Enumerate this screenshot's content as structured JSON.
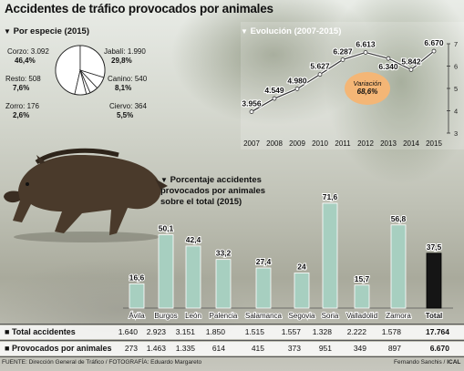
{
  "title": "Accidentes de tráfico provocados por animales",
  "pie": {
    "heading": "Por especie (2015)",
    "slices": [
      {
        "name": "Corzo",
        "count": "3.092",
        "pct": "46,4%",
        "value": 46.4
      },
      {
        "name": "Jabalí",
        "count": "1.990",
        "pct": "29,8%",
        "value": 29.8
      },
      {
        "name": "Canino",
        "count": "540",
        "pct": "8,1%",
        "value": 8.1
      },
      {
        "name": "Ciervo",
        "count": "364",
        "pct": "5,5%",
        "value": 5.5
      },
      {
        "name": "Zorro",
        "count": "176",
        "pct": "2,6%",
        "value": 2.6
      },
      {
        "name": "Resto",
        "count": "508",
        "pct": "7,6%",
        "value": 7.6
      }
    ]
  },
  "chart_data": [
    {
      "type": "line",
      "title": "Evolución (2007-2015)",
      "x": [
        "2007",
        "2008",
        "2009",
        "2010",
        "2011",
        "2012",
        "2013",
        "2014",
        "2015"
      ],
      "series": [
        {
          "values": [
            3.956,
            4.549,
            4.98,
            5.627,
            6.287,
            6.613,
            6.34,
            5.842,
            6.67
          ]
        }
      ],
      "value_labels": [
        "3.956",
        "4.549",
        "4.980",
        "5.627",
        "6.287",
        "6.613",
        "6.340",
        "5.842",
        "6.670"
      ],
      "y_ticks": [
        "3",
        "4",
        "5",
        "6",
        "7"
      ],
      "ylim": [
        3,
        7
      ],
      "grid": false
    },
    {
      "type": "bar",
      "title": "Porcentaje accidentes provocados por animales sobre el total (2015)",
      "categories": [
        "Ávila",
        "Burgos",
        "León",
        "Palencia",
        "Salamanca",
        "Segovia",
        "Soria",
        "Valladolid",
        "Zamora",
        "Total"
      ],
      "values": [
        16.6,
        50.1,
        42.4,
        33.2,
        27.4,
        24,
        71.6,
        15.7,
        56.8,
        37.5
      ],
      "value_labels": [
        "16,6",
        "50,1",
        "42,4",
        "33,2",
        "27,4",
        "24",
        "71,6",
        "15,7",
        "56,8",
        "37,5"
      ],
      "colors": {
        "province": "#a7cfc0",
        "total": "#151515"
      }
    }
  ],
  "variation": {
    "label": "Variación",
    "value": "68,6%"
  },
  "table": {
    "rows": [
      {
        "label": "Total accidentes",
        "values": [
          "1.640",
          "2.923",
          "3.151",
          "1.850",
          "1.515",
          "1.557",
          "1.328",
          "2.222",
          "1.578"
        ],
        "total": "17.764"
      },
      {
        "label": "Provocados por animales",
        "values": [
          "273",
          "1.463",
          "1.335",
          "614",
          "415",
          "373",
          "951",
          "349",
          "897"
        ],
        "total": "6.670"
      }
    ]
  },
  "footer": {
    "source": "FUENTE: Dirección General de Tráfico / FOTOGRAFÍA: Eduardo Margareto",
    "credit_prefix": "Fernando Sanchis /",
    "credit_brand": "ICAL"
  },
  "icons": {
    "section_marker": "triangle-down-icon",
    "row_marker": "square-bullet-icon"
  }
}
